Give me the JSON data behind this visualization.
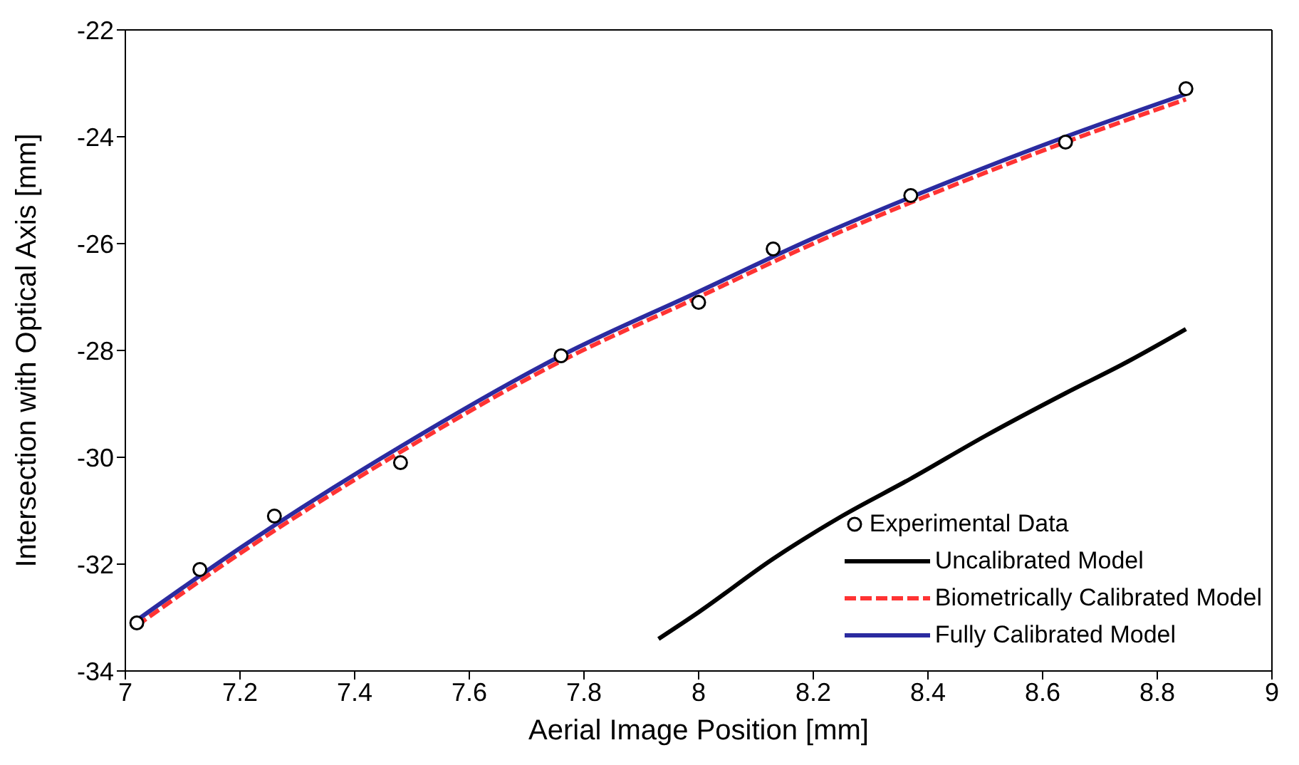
{
  "chart_data": {
    "type": "line",
    "xlabel": "Aerial Image Position [mm]",
    "ylabel": "Intersection with Optical Axis [mm]",
    "xlim": [
      7,
      9
    ],
    "xticks": [
      7,
      7.2,
      7.4,
      7.6,
      7.8,
      8,
      8.2,
      8.4,
      8.6,
      8.8,
      9
    ],
    "ylim": [
      -34,
      -22
    ],
    "yticks": [
      -34,
      -32,
      -30,
      -28,
      -26,
      -24,
      -22
    ],
    "grid": false,
    "legend": "bottom right",
    "series": [
      {
        "name": "Experimental Data",
        "type": "scatter",
        "marker": "circle",
        "color": "#000000",
        "x": [
          7.02,
          7.13,
          7.26,
          7.48,
          7.76,
          8.0,
          8.13,
          8.37,
          8.64,
          8.85
        ],
        "values": [
          -33.1,
          -32.1,
          -31.1,
          -30.1,
          -28.1,
          -27.1,
          -26.1,
          -25.1,
          -24.1,
          -23.1
        ]
      },
      {
        "name": "Uncalibrated Model",
        "line_style": "solid",
        "color": "#000000",
        "x": [
          7.93,
          8.0,
          8.13,
          8.25,
          8.37,
          8.5,
          8.64,
          8.75,
          8.85
        ],
        "values": [
          -33.4,
          -32.9,
          -31.9,
          -31.1,
          -30.4,
          -29.6,
          -28.8,
          -28.2,
          -27.6
        ]
      },
      {
        "name": "Biometrically Calibrated Model",
        "line_style": "dashed",
        "color": "#ff3333",
        "x": [
          7.02,
          7.2,
          7.48,
          7.76,
          8.0,
          8.2,
          8.4,
          8.64,
          8.85
        ],
        "values": [
          -33.15,
          -31.8,
          -29.9,
          -28.2,
          -27.0,
          -26.0,
          -25.1,
          -24.1,
          -23.3
        ]
      },
      {
        "name": "Fully Calibrated Model",
        "line_style": "solid",
        "color": "#2b2ba0",
        "x": [
          7.02,
          7.2,
          7.48,
          7.76,
          8.0,
          8.2,
          8.4,
          8.64,
          8.85
        ],
        "values": [
          -33.05,
          -31.7,
          -29.8,
          -28.1,
          -26.9,
          -25.9,
          -25.0,
          -24.0,
          -23.2
        ]
      }
    ]
  }
}
